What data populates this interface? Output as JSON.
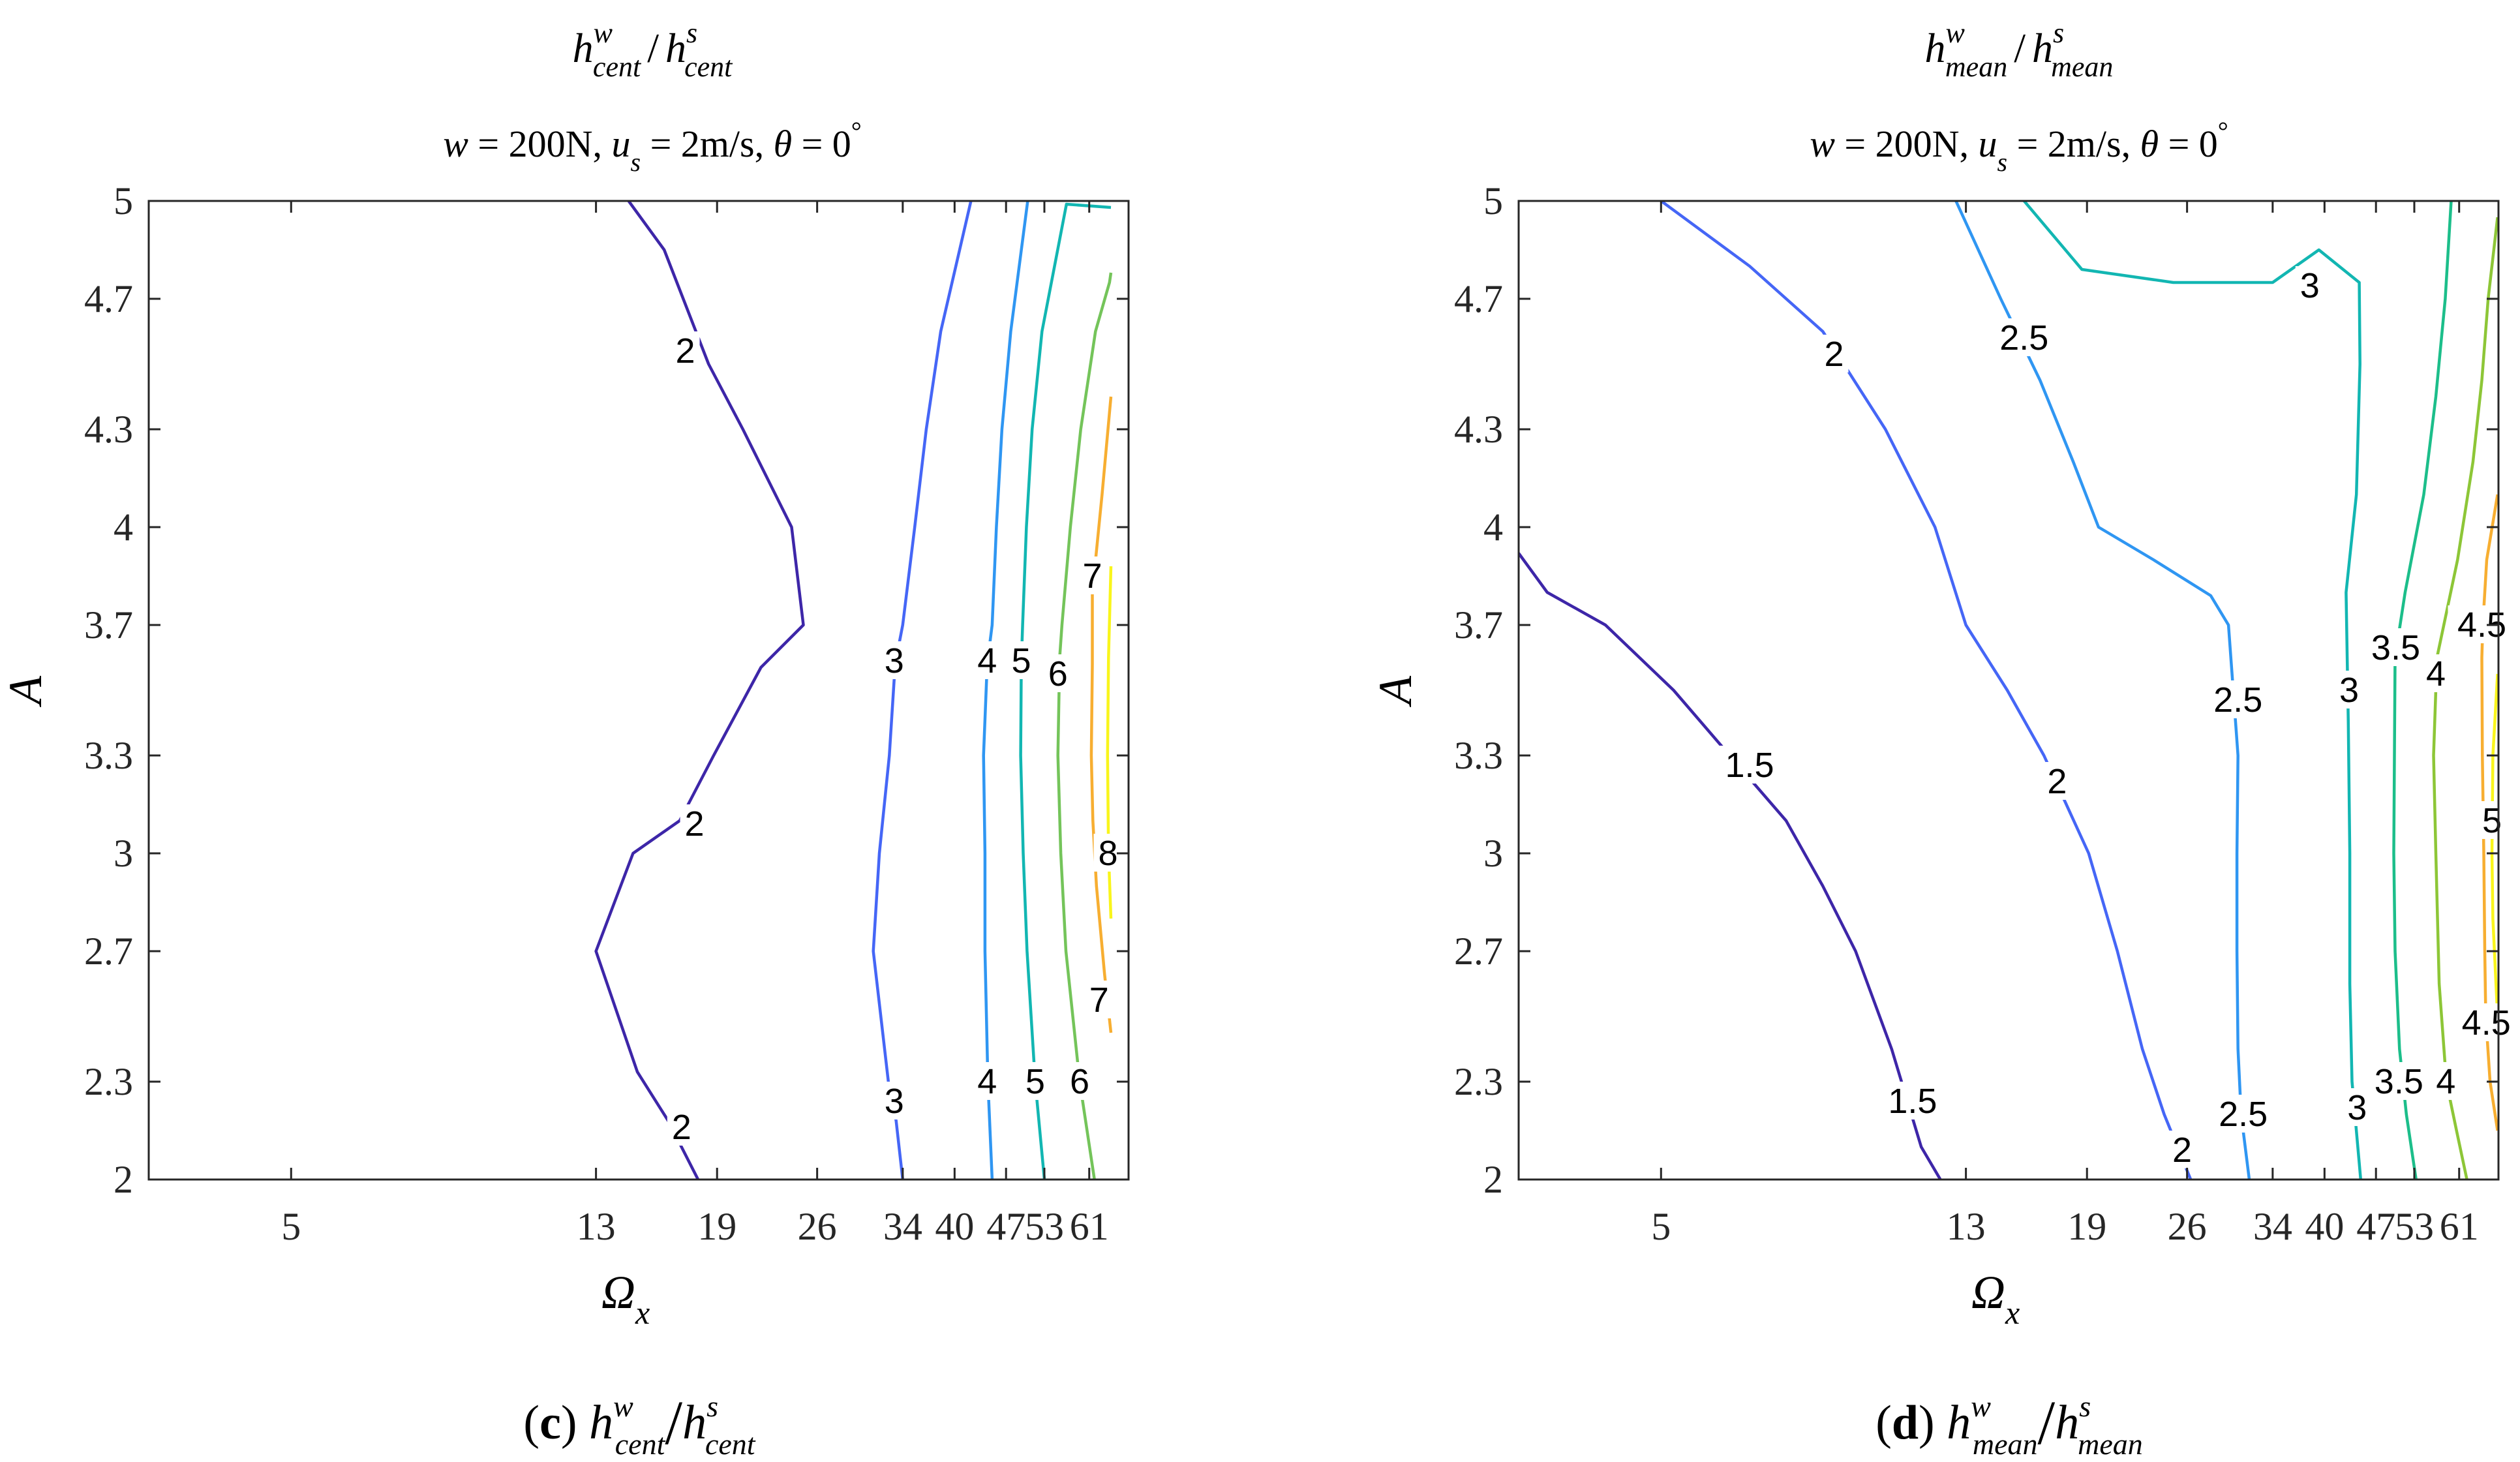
{
  "chart_data": [
    {
      "type": "contour",
      "panel": "(c)",
      "title": {
        "main": "h",
        "sup_num": "w",
        "sub_num": "cent",
        "sep": "/",
        "sup_den": "s",
        "sub_den": "cent"
      },
      "subtitle": {
        "w_var": "w",
        "w_val": "= 200N,",
        "u_var": "u",
        "u_sub": "s",
        "u_val": "= 2m/s,",
        "theta_var": "θ",
        "theta_val": "= 0",
        "deg": "°"
      },
      "xlabel": {
        "var": "Ω",
        "sub": "x"
      },
      "ylabel": "A",
      "xscale": "log",
      "xlim": [
        3.2,
        69
      ],
      "ylim": [
        2,
        5
      ],
      "xticks": [
        5,
        13,
        19,
        26,
        34,
        40,
        47,
        53,
        61
      ],
      "xticklabels": [
        "5",
        "13",
        "19",
        "26",
        "34",
        "40",
        "47",
        "53",
        "61"
      ],
      "yticks": [
        2,
        2.3,
        2.7,
        3,
        3.3,
        3.7,
        4,
        4.3,
        4.7,
        5
      ],
      "yticklabels": [
        "2",
        "2.3",
        "2.7",
        "3",
        "3.3",
        "3.7",
        "4",
        "4.3",
        "4.7",
        "5"
      ],
      "caption": {
        "letter": "c",
        "var": "h",
        "sup_num": "w",
        "sub_num": "cent",
        "sep": "/",
        "sup_den": "s",
        "sub_den": "cent"
      },
      "levels": [
        {
          "level": 2,
          "color": "#3d26a8",
          "points": [
            [
              17.9,
              2
            ],
            [
              16.3,
              2.18
            ],
            [
              14.8,
              2.33
            ],
            [
              13,
              2.7
            ],
            [
              14.6,
              3
            ],
            [
              16.9,
              3.1
            ],
            [
              18.8,
              3.3
            ],
            [
              21.8,
              3.57
            ],
            [
              24.9,
              3.7
            ],
            [
              24,
              4
            ],
            [
              20.6,
              4.3
            ],
            [
              18.5,
              4.5
            ],
            [
              16.1,
              4.85
            ],
            [
              14.4,
              5
            ]
          ]
        },
        {
          "level": 3,
          "color": "#4566f6",
          "points": [
            [
              34,
              2
            ],
            [
              33.3,
              2.18
            ],
            [
              32.5,
              2.3
            ],
            [
              31,
              2.7
            ],
            [
              31.6,
              3
            ],
            [
              32.6,
              3.3
            ],
            [
              33.2,
              3.58
            ],
            [
              34,
              3.7
            ],
            [
              35.3,
              4
            ],
            [
              36.6,
              4.3
            ],
            [
              38.3,
              4.6
            ],
            [
              42.1,
              5
            ]
          ]
        },
        {
          "level": 4,
          "color": "#2f96f2",
          "points": [
            [
              45,
              2
            ],
            [
              44.4,
              2.3
            ],
            [
              44,
              2.7
            ],
            [
              44,
              3
            ],
            [
              43.8,
              3.3
            ],
            [
              44.3,
              3.58
            ],
            [
              45,
              3.7
            ],
            [
              45.6,
              4
            ],
            [
              46.4,
              4.3
            ],
            [
              47.7,
              4.6
            ],
            [
              50.3,
              5
            ]
          ]
        },
        {
          "level": 5,
          "color": "#12b6b2",
          "points": [
            [
              53,
              2
            ],
            [
              51.5,
              2.3
            ],
            [
              50.2,
              2.7
            ],
            [
              49.6,
              3
            ],
            [
              49.2,
              3.3
            ],
            [
              49.3,
              3.58
            ],
            [
              49.5,
              3.7
            ],
            [
              50.1,
              4
            ],
            [
              51,
              4.3
            ],
            [
              52.6,
              4.6
            ],
            [
              56.8,
              4.99
            ],
            [
              65.3,
              4.98
            ]
          ]
        },
        {
          "level": 6,
          "color": "#74c45a",
          "points": [
            [
              62,
              2
            ],
            [
              59.2,
              2.3
            ],
            [
              56.7,
              2.7
            ],
            [
              55.8,
              3
            ],
            [
              55.3,
              3.3
            ],
            [
              55.6,
              3.6
            ],
            [
              56,
              3.7
            ],
            [
              57.5,
              4
            ],
            [
              59.4,
              4.3
            ],
            [
              62.2,
              4.6
            ],
            [
              65,
              4.75
            ],
            [
              65.3,
              4.78
            ]
          ]
        },
        {
          "level": 7,
          "color": "#f7ae31",
          "points": [
            [
              65.3,
              2.45
            ],
            [
              64,
              2.63
            ],
            [
              62.4,
              2.9
            ],
            [
              61.7,
              3.1
            ],
            [
              61.4,
              3.3
            ],
            [
              61.6,
              3.58
            ],
            [
              61.6,
              3.8
            ],
            [
              63.5,
              4.1
            ],
            [
              65.3,
              4.4
            ]
          ]
        },
        {
          "level": 8,
          "color": "#f9f51b",
          "points": [
            [
              65.3,
              2.8
            ],
            [
              64.8,
              3
            ],
            [
              64.6,
              3.3
            ],
            [
              64.8,
              3.6
            ],
            [
              65.3,
              3.88
            ]
          ]
        }
      ],
      "contour_labels": [
        {
          "text": "2",
          "x": 17.2,
          "y": 4.54
        },
        {
          "text": "2",
          "x": 17.7,
          "y": 3.09
        },
        {
          "text": "2",
          "x": 17.0,
          "y": 2.16
        },
        {
          "text": "3",
          "x": 33.1,
          "y": 3.59
        },
        {
          "text": "3",
          "x": 33.1,
          "y": 2.24
        },
        {
          "text": "4",
          "x": 44.3,
          "y": 3.59
        },
        {
          "text": "4",
          "x": 44.3,
          "y": 2.3
        },
        {
          "text": "5",
          "x": 49.3,
          "y": 3.59
        },
        {
          "text": "5",
          "x": 51.5,
          "y": 2.3
        },
        {
          "text": "6",
          "x": 55.3,
          "y": 3.55
        },
        {
          "text": "6",
          "x": 59.2,
          "y": 2.3
        },
        {
          "text": "7",
          "x": 61.6,
          "y": 3.85
        },
        {
          "text": "7",
          "x": 62.9,
          "y": 2.55
        },
        {
          "text": "8",
          "x": 64.7,
          "y": 3.0
        }
      ]
    },
    {
      "type": "contour",
      "panel": "(d)",
      "title": {
        "main": "h",
        "sup_num": "w",
        "sub_num": "mean",
        "sep": "/",
        "sup_den": "s",
        "sub_den": "mean"
      },
      "subtitle": {
        "w_var": "w",
        "w_val": "= 200N,",
        "u_var": "u",
        "u_sub": "s",
        "u_val": "= 2m/s,",
        "theta_var": "θ",
        "theta_val": "= 0",
        "deg": "°"
      },
      "xlabel": {
        "var": "Ω",
        "sub": "x"
      },
      "ylabel": "A",
      "xscale": "log",
      "xlim": [
        3.2,
        69
      ],
      "ylim": [
        2,
        5
      ],
      "xticks": [
        5,
        13,
        19,
        26,
        34,
        40,
        47,
        53,
        61
      ],
      "xticklabels": [
        "5",
        "13",
        "19",
        "26",
        "34",
        "40",
        "47",
        "53",
        "61"
      ],
      "yticks": [
        2,
        2.3,
        2.7,
        3,
        3.3,
        3.7,
        4,
        4.3,
        4.7,
        5
      ],
      "yticklabels": [
        "2",
        "2.3",
        "2.7",
        "3",
        "3.3",
        "3.7",
        "4",
        "4.3",
        "4.7",
        "5"
      ],
      "caption": {
        "letter": "d",
        "var": "h",
        "sup_num": "w",
        "sub_num": "mean",
        "sep": "/",
        "sup_den": "s",
        "sub_den": "mean"
      },
      "levels": [
        {
          "level": 1.5,
          "color": "#3d26a8",
          "points": [
            [
              3.2,
              3.92
            ],
            [
              3.5,
              3.8
            ],
            [
              4.2,
              3.7
            ],
            [
              5.2,
              3.5
            ],
            [
              6.2,
              3.3
            ],
            [
              7.4,
              3.1
            ],
            [
              8.3,
              2.9
            ],
            [
              9.2,
              2.7
            ],
            [
              10.3,
              2.4
            ],
            [
              11.3,
              2.1
            ],
            [
              12,
              2
            ]
          ]
        },
        {
          "level": 2,
          "color": "#4566f6",
          "points": [
            [
              5,
              5
            ],
            [
              6.6,
              4.8
            ],
            [
              8.3,
              4.6
            ],
            [
              10.1,
              4.3
            ],
            [
              11.8,
              4
            ],
            [
              13,
              3.7
            ],
            [
              14.8,
              3.5
            ],
            [
              16.6,
              3.3
            ],
            [
              19.1,
              3
            ],
            [
              20.9,
              2.7
            ],
            [
              22.6,
              2.4
            ],
            [
              24.2,
              2.2
            ],
            [
              26.3,
              2
            ]
          ]
        },
        {
          "level": 2.5,
          "color": "#2f96f2",
          "points": [
            [
              12.6,
              5
            ],
            [
              14.5,
              4.7
            ],
            [
              16.4,
              4.45
            ],
            [
              18.2,
              4.2
            ],
            [
              19.7,
              4
            ],
            [
              23.4,
              3.9
            ],
            [
              28,
              3.79
            ],
            [
              29.6,
              3.7
            ],
            [
              30.5,
              3.3
            ],
            [
              30.4,
              3
            ],
            [
              30.4,
              2.7
            ],
            [
              30.5,
              2.4
            ],
            [
              30.8,
              2.2
            ],
            [
              31.6,
              2
            ]
          ]
        },
        {
          "level": 3,
          "color": "#12b6b2",
          "points": [
            [
              15.6,
              5
            ],
            [
              18.7,
              4.79
            ],
            [
              24.9,
              4.75
            ],
            [
              34,
              4.75
            ],
            [
              39.3,
              4.85
            ],
            [
              44.6,
              4.75
            ],
            [
              44.7,
              4.5
            ],
            [
              44.2,
              4.1
            ],
            [
              42.8,
              3.8
            ],
            [
              43.1,
              3.4
            ],
            [
              43.3,
              3
            ],
            [
              43.3,
              2.6
            ],
            [
              43.6,
              2.3
            ],
            [
              44.8,
              2
            ]
          ]
        },
        {
          "level": 3.5,
          "color": "#1cbe8a",
          "points": [
            [
              59.5,
              5
            ],
            [
              58.4,
              4.7
            ],
            [
              56.7,
              4.4
            ],
            [
              54.6,
              4.1
            ],
            [
              51.5,
              3.8
            ],
            [
              49.9,
              3.6
            ],
            [
              49.8,
              3.3
            ],
            [
              49.7,
              3
            ],
            [
              49.9,
              2.7
            ],
            [
              50.6,
              2.4
            ],
            [
              51.7,
              2.2
            ],
            [
              53.3,
              2
            ]
          ]
        },
        {
          "level": 4,
          "color": "#8dc637",
          "points": [
            [
              68.8,
              4.95
            ],
            [
              66.8,
              4.7
            ],
            [
              65.5,
              4.45
            ],
            [
              63.7,
              4.2
            ],
            [
              60.7,
              3.9
            ],
            [
              56.9,
              3.6
            ],
            [
              56.3,
              3.3
            ],
            [
              56.7,
              3
            ],
            [
              57.3,
              2.6
            ],
            [
              58.6,
              2.3
            ],
            [
              60.5,
              2.15
            ],
            [
              62.5,
              2
            ]
          ]
        },
        {
          "level": 4.5,
          "color": "#f7ae31",
          "points": [
            [
              68.8,
              4.1
            ],
            [
              66.5,
              3.9
            ],
            [
              65.7,
              3.7
            ],
            [
              65.5,
              3.6
            ],
            [
              65.6,
              3.3
            ],
            [
              65.9,
              3
            ],
            [
              66.1,
              2.7
            ],
            [
              66.3,
              2.5
            ],
            [
              67.2,
              2.3
            ],
            [
              68.8,
              2.15
            ]
          ]
        },
        {
          "level": 5,
          "color": "#f9f51b",
          "points": [
            [
              68.8,
              3.55
            ],
            [
              67.8,
              3.3
            ],
            [
              67.6,
              3
            ],
            [
              67.8,
              2.8
            ],
            [
              68.8,
              2.5
            ]
          ]
        }
      ],
      "contour_labels": [
        {
          "text": "1.5",
          "x": 6.6,
          "y": 3.27
        },
        {
          "text": "1.5",
          "x": 11.0,
          "y": 2.24
        },
        {
          "text": "2",
          "x": 8.6,
          "y": 4.53
        },
        {
          "text": "2",
          "x": 17.3,
          "y": 3.22
        },
        {
          "text": "2",
          "x": 25.6,
          "y": 2.09
        },
        {
          "text": "2.5",
          "x": 15.6,
          "y": 4.58
        },
        {
          "text": "2.5",
          "x": 30.5,
          "y": 3.47
        },
        {
          "text": "2.5",
          "x": 31.0,
          "y": 2.2
        },
        {
          "text": "3",
          "x": 38.2,
          "y": 4.74
        },
        {
          "text": "3",
          "x": 43.2,
          "y": 3.5
        },
        {
          "text": "3",
          "x": 44.3,
          "y": 2.22
        },
        {
          "text": "3.5",
          "x": 50.0,
          "y": 3.63
        },
        {
          "text": "3.5",
          "x": 50.5,
          "y": 2.3
        },
        {
          "text": "4",
          "x": 56.7,
          "y": 3.55
        },
        {
          "text": "4",
          "x": 58.5,
          "y": 2.3
        },
        {
          "text": "4.5",
          "x": 65.5,
          "y": 3.7
        },
        {
          "text": "4.5",
          "x": 66.4,
          "y": 2.48
        },
        {
          "text": "5",
          "x": 67.6,
          "y": 3.1
        }
      ]
    }
  ]
}
